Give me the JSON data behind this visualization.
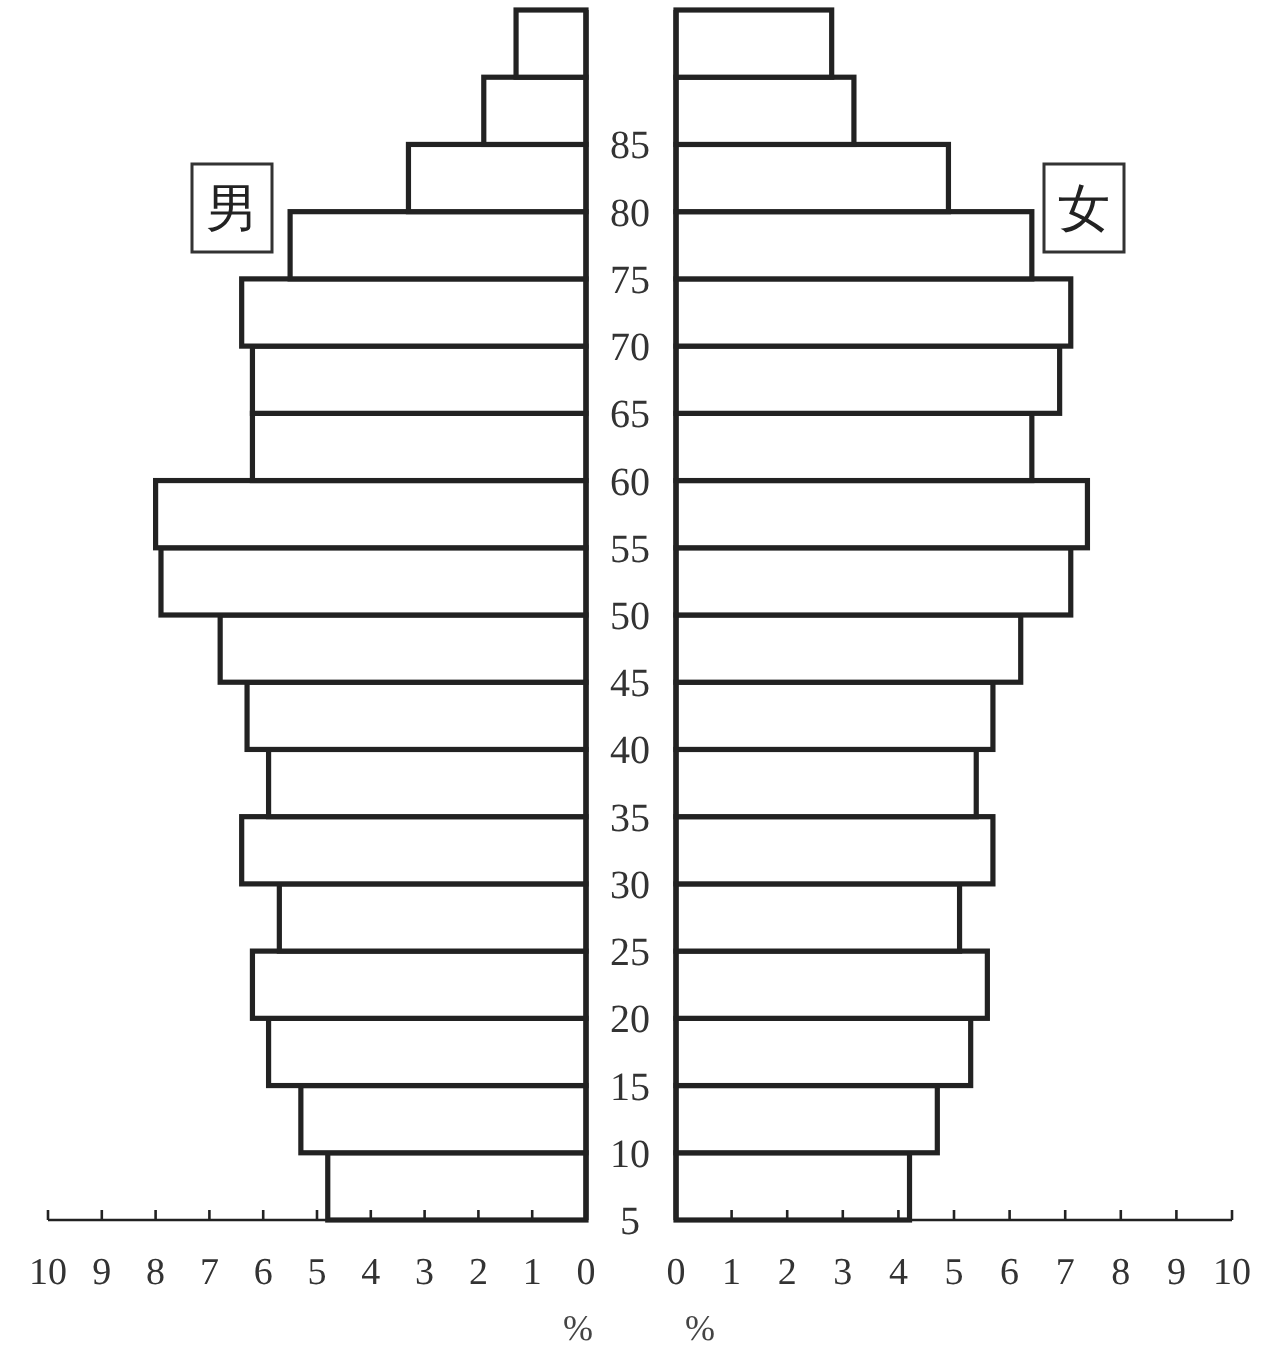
{
  "chart_data": [
    {
      "type": "bar",
      "orientation": "horizontal",
      "x": [
        7.5,
        12.5,
        17.5,
        22.5,
        27.5,
        32.5,
        37.5,
        42.5,
        47.5,
        52.5,
        57.5,
        62.5,
        67.5,
        72.5,
        77.5,
        82.5,
        87.5,
        92.5
      ],
      "values": [
        4.8,
        5.3,
        5.9,
        6.2,
        5.7,
        6.4,
        5.9,
        6.3,
        6.8,
        7.9,
        8.0,
        6.2,
        6.2,
        6.4,
        5.5,
        3.3,
        1.9,
        1.3
      ],
      "color": "#ffffff",
      "xlim": [
        10,
        0
      ],
      "xticks": [
        10,
        9,
        8,
        7,
        6,
        5,
        4,
        3,
        2,
        1,
        0
      ],
      "ylim": [
        5,
        95
      ],
      "yticks": [
        5,
        10,
        15,
        20,
        25,
        30,
        35,
        40,
        45,
        50,
        55,
        60,
        65,
        70,
        75,
        80,
        85
      ],
      "xlabel": "%",
      "annotations": [
        "男"
      ]
    },
    {
      "type": "bar",
      "orientation": "horizontal",
      "x": [
        7.5,
        12.5,
        17.5,
        22.5,
        27.5,
        32.5,
        37.5,
        42.5,
        47.5,
        52.5,
        57.5,
        62.5,
        67.5,
        72.5,
        77.5,
        82.5,
        87.5,
        92.5
      ],
      "values": [
        4.2,
        4.7,
        5.3,
        5.6,
        5.1,
        5.7,
        5.4,
        5.7,
        6.2,
        7.1,
        7.4,
        6.4,
        6.9,
        7.1,
        6.4,
        4.9,
        3.2,
        2.8
      ],
      "color": "#ffffff",
      "xlim": [
        0,
        10
      ],
      "xticks": [
        0,
        1,
        2,
        3,
        4,
        5,
        6,
        7,
        8,
        9,
        10
      ],
      "ylim": [
        5,
        95
      ],
      "xlabel": "%",
      "annotations": [
        "女"
      ],
      "tick_labels": "x"
    }
  ]
}
